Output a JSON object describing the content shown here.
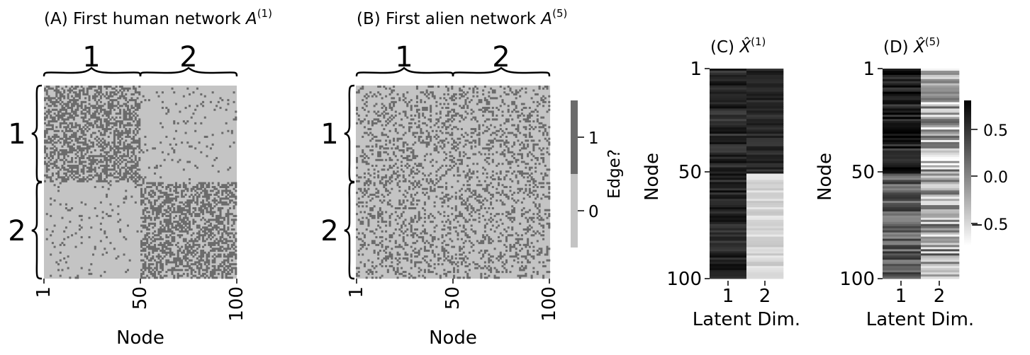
{
  "chart_data": [
    {
      "type": "heatmap",
      "panel": "A",
      "title": "(A) First human network",
      "title_symbol": "A",
      "title_superscript": "(1)",
      "xlabel": "Node",
      "ylabel": "",
      "xticks": [
        "1",
        "50",
        "100"
      ],
      "yticks": [],
      "block_labels": [
        "1",
        "2"
      ],
      "n_nodes": 100,
      "block_sizes": [
        50,
        50
      ],
      "edge_prob_within": 0.5,
      "edge_prob_between": 0.05,
      "values": "binary adjacency (0 = no edge, 1 = edge)"
    },
    {
      "type": "heatmap",
      "panel": "B",
      "title": "(B) First alien network",
      "title_symbol": "A",
      "title_superscript": "(5)",
      "xlabel": "Node",
      "ylabel": "",
      "xticks": [
        "1",
        "50",
        "100"
      ],
      "yticks": [],
      "block_labels": [
        "1",
        "2"
      ],
      "n_nodes": 100,
      "block_sizes": [
        50,
        50
      ],
      "edge_prob_within": 0.25,
      "edge_prob_between": 0.25,
      "colorbar": {
        "label": "Edge?",
        "ticks": [
          "0",
          "1"
        ],
        "colors": [
          "#c4c4c4",
          "#6b6b6b"
        ]
      }
    },
    {
      "type": "heatmap",
      "panel": "C",
      "title": "(C)",
      "title_symbol": "X̂",
      "title_superscript": "(1)",
      "xlabel": "Latent Dim.",
      "ylabel": "Node",
      "xticks": [
        "1",
        "2"
      ],
      "yticks": [
        "1",
        "50",
        "100"
      ],
      "n_rows": 100,
      "approx_values": {
        "dim1": {
          "rows_1_50": 0.55,
          "rows_51_100": 0.55
        },
        "dim2": {
          "rows_1_50": 0.55,
          "rows_51_100": -0.55
        }
      }
    },
    {
      "type": "heatmap",
      "panel": "D",
      "title": "(D)",
      "title_symbol": "X̂",
      "title_superscript": "(5)",
      "xlabel": "Latent Dim.",
      "ylabel": "Node",
      "xticks": [
        "1",
        "2"
      ],
      "yticks": [
        "1",
        "50",
        "100"
      ],
      "n_rows": 100,
      "approx_values": {
        "dim1": {
          "rows_1_50": 0.6,
          "rows_51_100": 0.2
        },
        "dim2": {
          "rows_1_50": -0.3,
          "rows_51_100": -0.2
        }
      },
      "colorbar": {
        "ticks": [
          "0.5",
          "0.0",
          "−0.5"
        ],
        "tick_values": [
          0.5,
          0.0,
          -0.5
        ],
        "range": [
          -0.8,
          0.8
        ],
        "colors": [
          "#ffffff",
          "#000000"
        ]
      }
    }
  ]
}
